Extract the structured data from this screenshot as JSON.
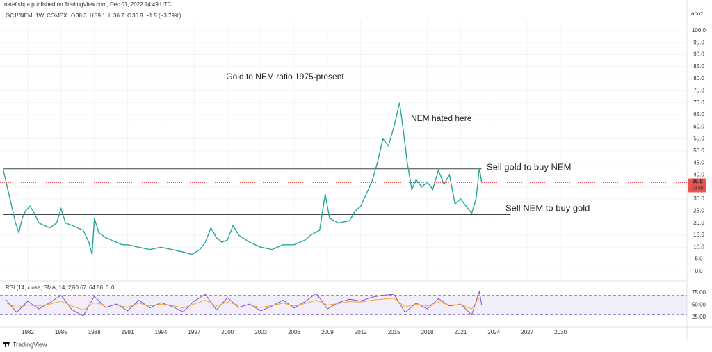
{
  "header": {
    "publisher": "natefishpa published on TradingView.com, Dec 01, 2022 14:49 UTC",
    "symbol": "GC1!/NEM, 1W, COMEX",
    "ohlc": [
      {
        "label": "O",
        "value": 38.3
      },
      {
        "label": "H",
        "value": 39.1
      },
      {
        "label": "L",
        "value": 36.7
      },
      {
        "label": "C",
        "value": 36.8
      }
    ],
    "change": "−1.5 (−3.79%)",
    "currency": "apoz"
  },
  "chart_data": [
    {
      "type": "line",
      "title": "Gold to NEM ratio 1975-present",
      "annotations": [
        "NEM hated here",
        "Sell gold to buy NEM",
        "Sell NEM to buy gold"
      ],
      "levels": [
        {
          "y": 42.5,
          "x": [
            1979.8,
            2022.9
          ]
        },
        {
          "y": 23.5,
          "x": [
            1979.8,
            2025.5
          ]
        }
      ],
      "price_tag": {
        "value": 36.8,
        "countdown": "1d 8h"
      },
      "x": [
        1979.8,
        1980.0,
        1980.3,
        1980.6,
        1980.9,
        1981.2,
        1981.5,
        1981.8,
        1982.2,
        1982.6,
        1983.0,
        1983.5,
        1984.0,
        1984.6,
        1985.0,
        1985.4,
        1986.0,
        1986.5,
        1987.0,
        1987.5,
        1987.8,
        1988.0,
        1988.4,
        1989.0,
        1989.5,
        1990.0,
        1990.5,
        1991.0,
        1992.0,
        1993.0,
        1994.0,
        1995.0,
        1996.0,
        1996.8,
        1997.5,
        1998.0,
        1998.5,
        1999.0,
        1999.5,
        2000.0,
        2000.5,
        2001.0,
        2002.0,
        2003.0,
        2004.0,
        2005.0,
        2006.0,
        2007.0,
        2007.5,
        2008.3,
        2008.8,
        2009.2,
        2010.0,
        2011.0,
        2011.5,
        2012.0,
        2012.5,
        2013.0,
        2013.5,
        2014.0,
        2014.5,
        2015.0,
        2015.5,
        2015.8,
        2016.2,
        2016.6,
        2017.0,
        2017.5,
        2018.0,
        2018.5,
        2019.0,
        2019.5,
        2020.0,
        2020.5,
        2021.0,
        2021.5,
        2022.0,
        2022.4,
        2022.7,
        2022.9
      ],
      "series": [
        {
          "name": "GC1!/NEM",
          "color": "#26a69a",
          "values": [
            42,
            38,
            32,
            26,
            20,
            16,
            22,
            25,
            27,
            24,
            20,
            19,
            18,
            20,
            26,
            20,
            19,
            18,
            17,
            12,
            7,
            22,
            16,
            14,
            13,
            12,
            11,
            11,
            10,
            9,
            10,
            9,
            8,
            7,
            9,
            12,
            18,
            14,
            12,
            13,
            19,
            15,
            12,
            10,
            9,
            11,
            11,
            13,
            15,
            17,
            32,
            22,
            20,
            21,
            25,
            27,
            32,
            37,
            45,
            55,
            52,
            60,
            70,
            60,
            45,
            34,
            38,
            35,
            37,
            34,
            42,
            36,
            40,
            28,
            30,
            27,
            24,
            30,
            43,
            36.8
          ]
        }
      ],
      "xlim": [
        1979.5,
        2041.4
      ],
      "ylim": [
        -3.8,
        104.0
      ],
      "xticks": [
        1982,
        1985,
        1988,
        1991,
        1994,
        1997,
        2000,
        2003,
        2006,
        2009,
        2012,
        2015,
        2018,
        2021,
        2024,
        2027,
        2030
      ],
      "yticks": [
        {
          "value": 0,
          "label": "0.0"
        },
        {
          "value": 5,
          "label": "5.0"
        },
        {
          "value": 10,
          "label": "10.0"
        },
        {
          "value": 15,
          "label": "15.0"
        },
        {
          "value": 20,
          "label": "20.0"
        },
        {
          "value": 25,
          "label": "25.0"
        },
        {
          "value": 30,
          "label": "30.0"
        },
        {
          "value": 35,
          "label": "35.0"
        },
        {
          "value": 40,
          "label": "40.0"
        },
        {
          "value": 45,
          "label": "45.0"
        },
        {
          "value": 50,
          "label": "50.0"
        },
        {
          "value": 55,
          "label": "55.0"
        },
        {
          "value": 60,
          "label": "60.0"
        },
        {
          "value": 65,
          "label": "65.0"
        },
        {
          "value": 70,
          "label": "70.0"
        },
        {
          "value": 75,
          "label": "75.0"
        },
        {
          "value": 80,
          "label": "80.0"
        },
        {
          "value": 85,
          "label": "85.0"
        },
        {
          "value": 90,
          "label": "90.0"
        },
        {
          "value": 95,
          "label": "95.0"
        },
        {
          "value": 100,
          "label": "100.0"
        }
      ],
      "grid": true
    },
    {
      "type": "line",
      "title": "RSI (14, close, SMA, 14, 2)",
      "legend_values": [
        {
          "value": 50.67,
          "color": "#7e57c2"
        },
        {
          "value": 64.58,
          "color": "#f9a825"
        },
        {
          "value": 0,
          "color": "#555555"
        },
        {
          "value": 0,
          "color": "#555555"
        }
      ],
      "band": [
        30,
        70
      ],
      "x": [
        1980,
        1981,
        1982,
        1983,
        1984,
        1985,
        1986,
        1987,
        1988,
        1989,
        1990,
        1991,
        1992,
        1993,
        1994,
        1995,
        1996,
        1997,
        1998,
        1999,
        2000,
        2001,
        2002,
        2003,
        2004,
        2005,
        2006,
        2007,
        2008,
        2009,
        2010,
        2011,
        2012,
        2013,
        2014,
        2015,
        2016,
        2017,
        2018,
        2019,
        2020,
        2021,
        2022,
        2022.7,
        2022.9
      ],
      "series": [
        {
          "name": "RSI",
          "color": "#7e57c2",
          "values": [
            62,
            35,
            58,
            42,
            55,
            70,
            40,
            28,
            68,
            45,
            52,
            38,
            60,
            44,
            55,
            47,
            36,
            58,
            72,
            40,
            65,
            45,
            52,
            38,
            48,
            60,
            44,
            57,
            74,
            42,
            55,
            62,
            58,
            66,
            70,
            72,
            35,
            54,
            42,
            63,
            48,
            52,
            30,
            78,
            50.67
          ]
        },
        {
          "name": "RSI-based MA",
          "color": "#f9a825",
          "values": [
            55,
            45,
            50,
            48,
            52,
            58,
            48,
            40,
            55,
            50,
            50,
            45,
            54,
            48,
            52,
            49,
            44,
            52,
            60,
            48,
            56,
            50,
            50,
            45,
            49,
            54,
            48,
            53,
            60,
            50,
            53,
            57,
            56,
            60,
            62,
            64,
            46,
            52,
            48,
            56,
            50,
            51,
            42,
            64.58,
            64.58
          ]
        }
      ],
      "xlim": [
        1979.5,
        2041.4
      ],
      "ylim": [
        10.7,
        93.6
      ],
      "yticks": [
        {
          "value": 25,
          "label": "25.00"
        },
        {
          "value": 50,
          "label": "50.00"
        },
        {
          "value": 75,
          "label": "75.00"
        }
      ]
    }
  ]
}
